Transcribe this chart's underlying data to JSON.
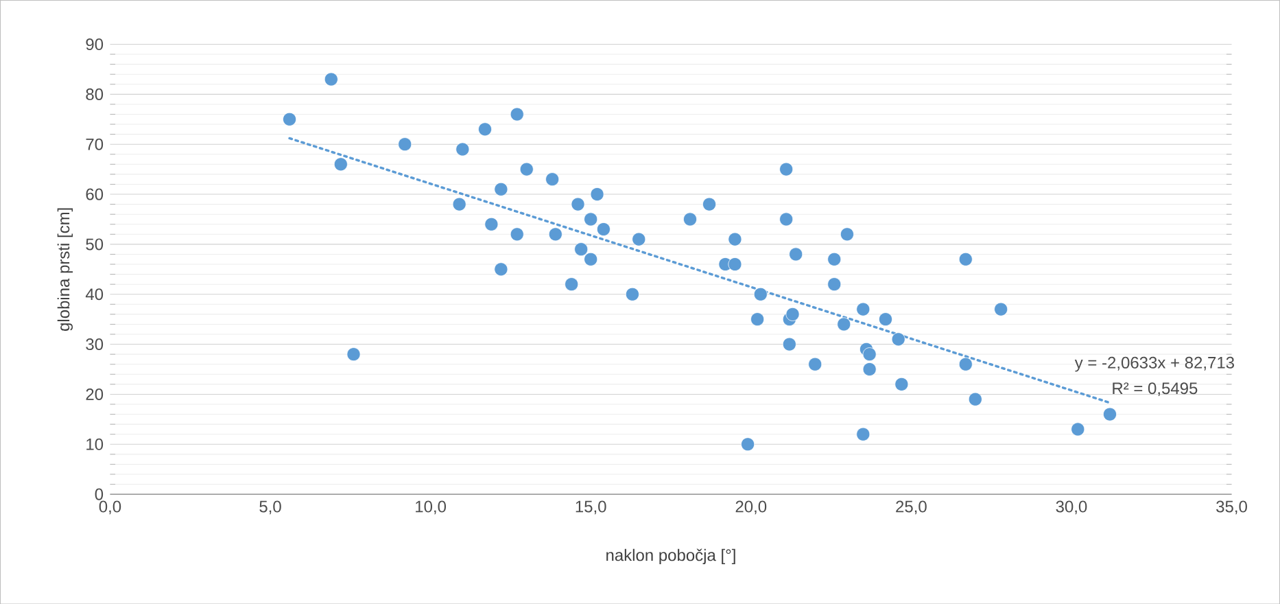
{
  "chart_data": {
    "type": "scatter",
    "xlabel": "naklon pobočja [°]",
    "ylabel": "globina prsti [cm]",
    "xlim": [
      0,
      35
    ],
    "ylim": [
      0,
      90
    ],
    "xticks": [
      {
        "value": 0,
        "label": "0,0"
      },
      {
        "value": 5,
        "label": "5,0"
      },
      {
        "value": 10,
        "label": "10,0"
      },
      {
        "value": 15,
        "label": "15,0"
      },
      {
        "value": 20,
        "label": "20,0"
      },
      {
        "value": 25,
        "label": "25,0"
      },
      {
        "value": 30,
        "label": "30,0"
      },
      {
        "value": 35,
        "label": "35,0"
      }
    ],
    "yticks": [
      0,
      10,
      20,
      30,
      40,
      50,
      60,
      70,
      80,
      90
    ],
    "grid": "y",
    "marker": "circle",
    "annotations": [
      "y = -2,0633x + 82,713",
      "R² = 0,5495"
    ],
    "series": [
      {
        "color": "#5b9bd5",
        "x": [
          5.6,
          6.9,
          7.2,
          7.6,
          9.2,
          10.9,
          11.0,
          11.7,
          11.9,
          12.2,
          12.2,
          12.7,
          12.7,
          13.0,
          13.8,
          13.9,
          14.4,
          14.6,
          14.7,
          15.0,
          15.0,
          15.2,
          15.4,
          16.5,
          16.3,
          18.1,
          18.7,
          19.2,
          19.5,
          19.5,
          19.9,
          20.2,
          20.3,
          21.1,
          21.1,
          21.2,
          21.3,
          21.2,
          21.4,
          22.0,
          22.6,
          22.6,
          22.9,
          23.0,
          23.5,
          23.5,
          23.6,
          23.7,
          23.7,
          24.2,
          24.6,
          24.7,
          26.7,
          26.7,
          27.0,
          27.8,
          30.2,
          31.2
        ],
        "values": [
          75,
          83,
          66,
          28,
          70,
          58,
          69,
          73,
          54,
          61,
          45,
          76,
          52,
          65,
          63,
          52,
          42,
          58,
          49,
          55,
          47,
          60,
          53,
          51,
          40,
          55,
          58,
          46,
          46,
          51,
          10,
          35,
          40,
          65,
          55,
          35,
          36,
          30,
          48,
          26,
          47,
          42,
          34,
          52,
          37,
          12,
          29,
          28,
          25,
          35,
          31,
          22,
          26,
          47,
          19,
          37,
          13,
          16
        ]
      },
      {
        "type": "line",
        "color": "#5b9bd5",
        "line_style": "dotted",
        "marker": "none",
        "x": [
          5.6,
          31.2
        ],
        "values": [
          71.2,
          18.3
        ]
      }
    ]
  }
}
